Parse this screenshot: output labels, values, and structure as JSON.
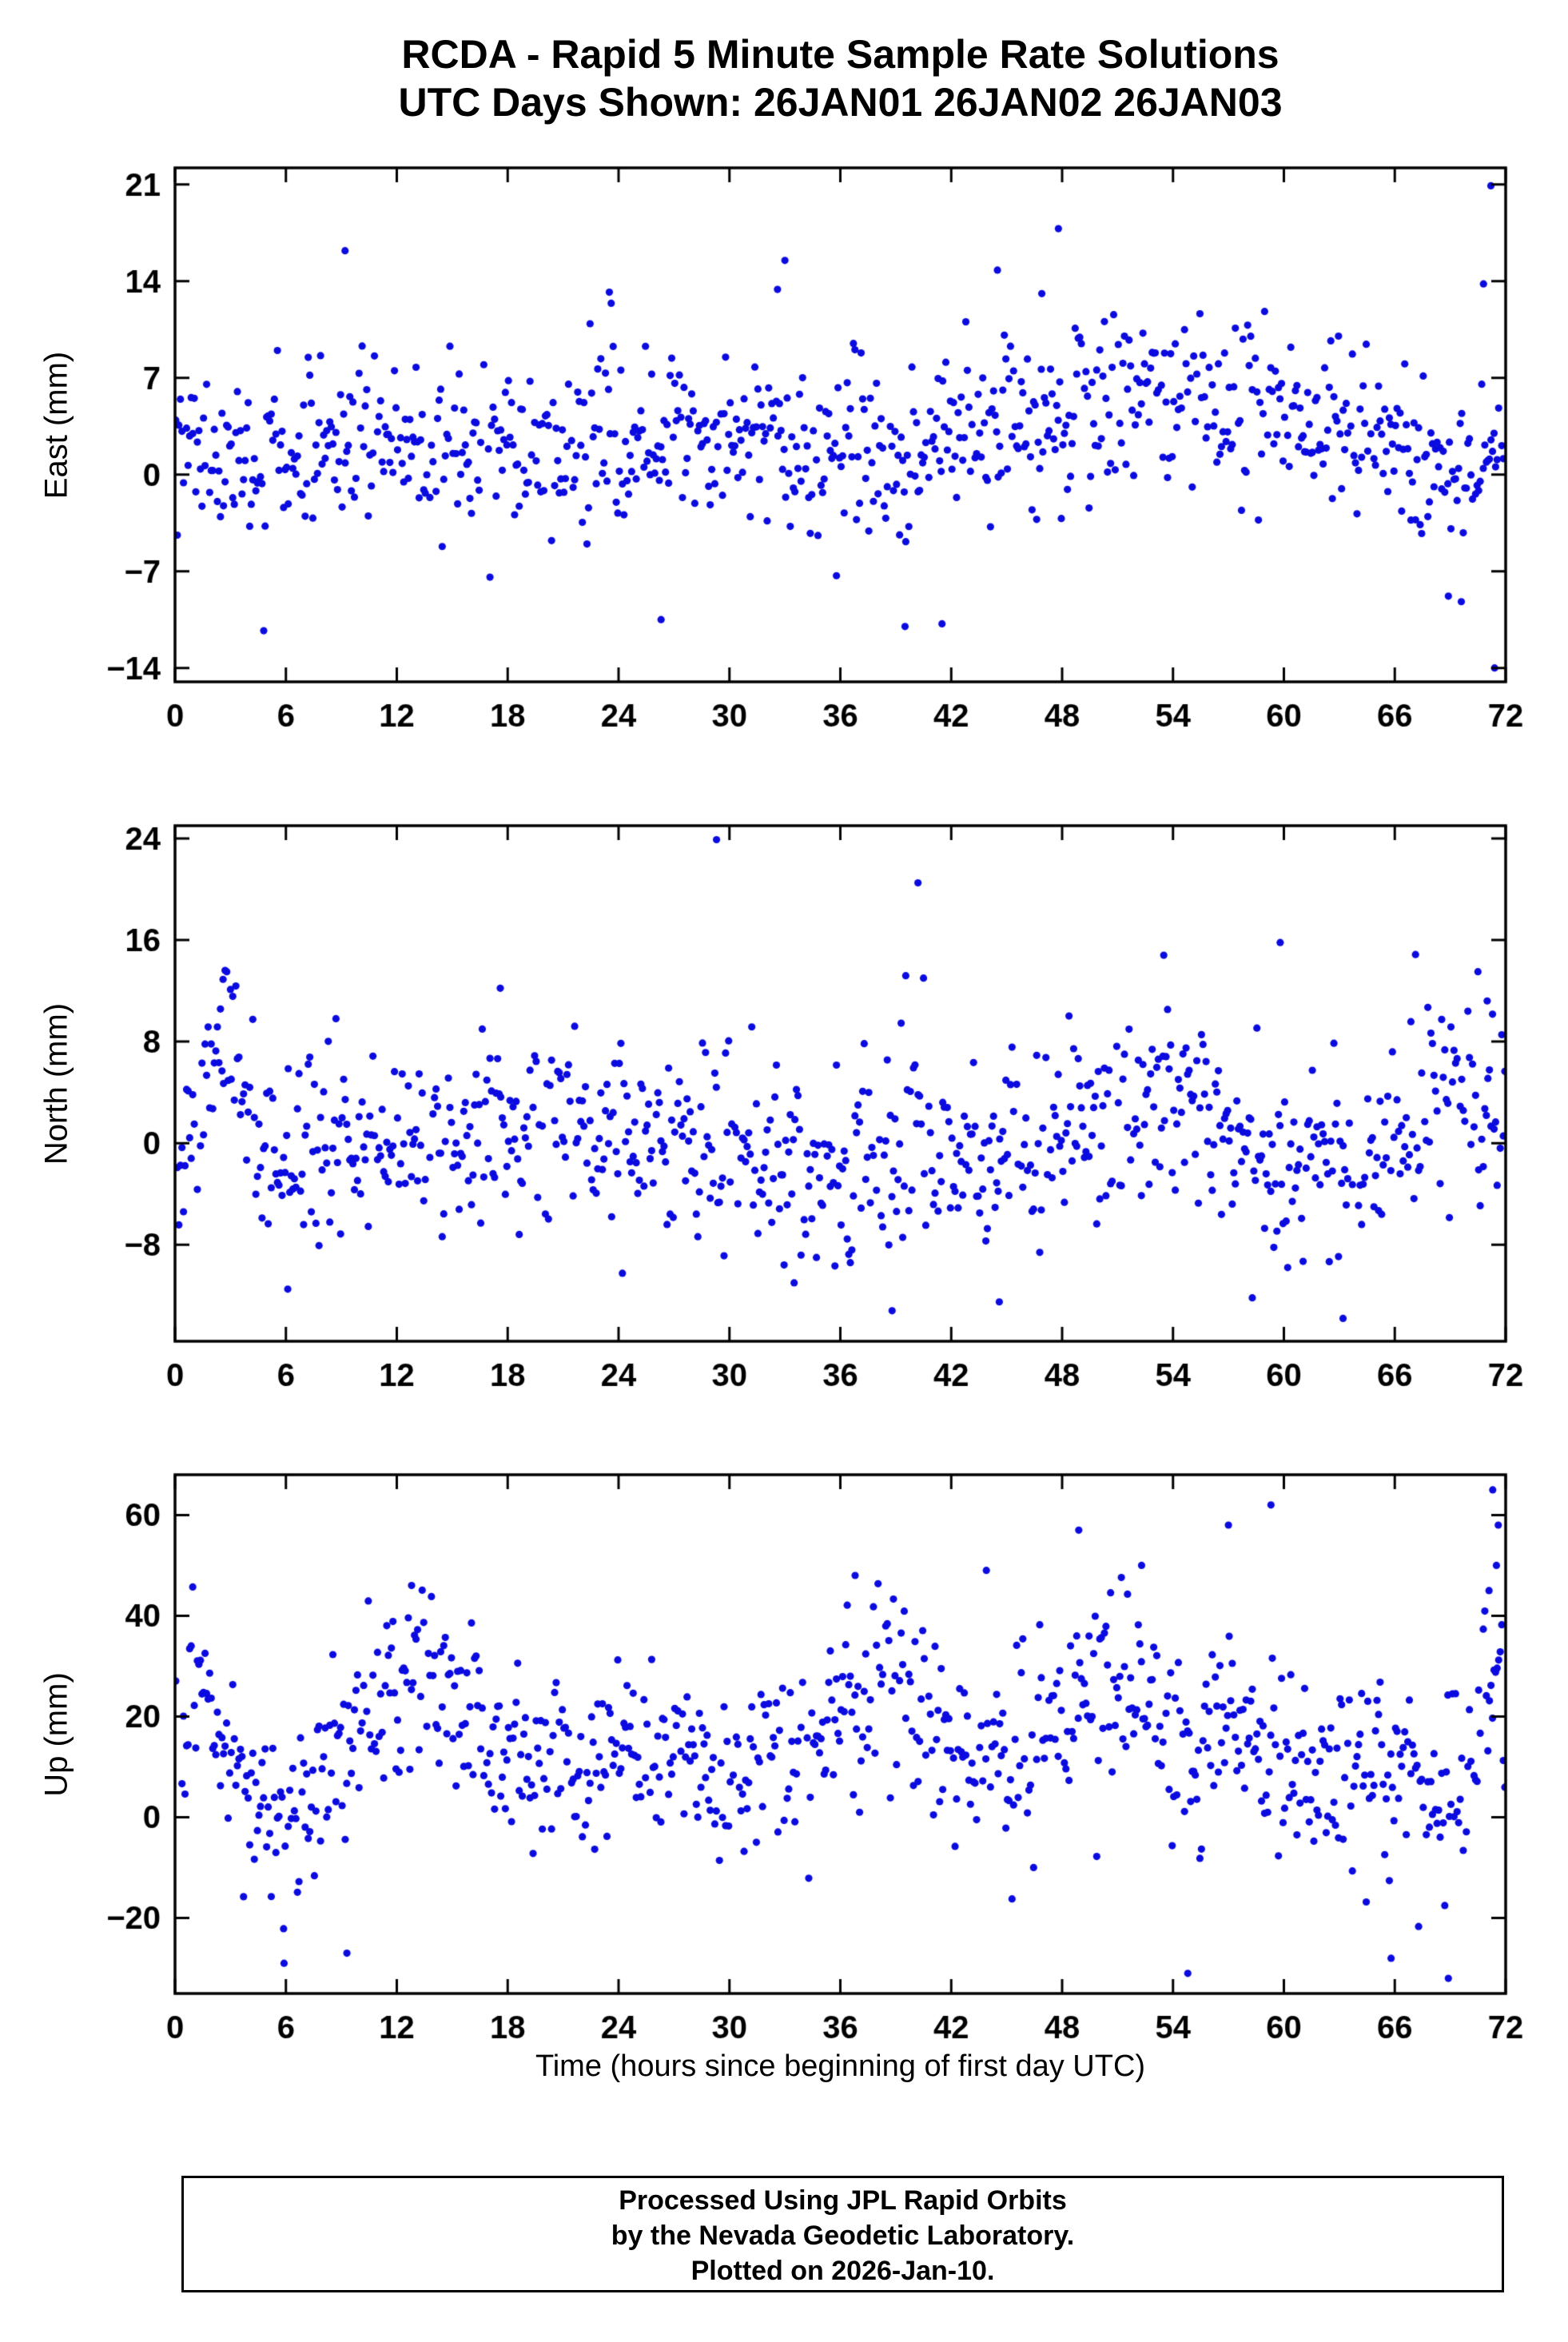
{
  "title": {
    "line1": "RCDA - Rapid 5 Minute Sample Rate Solutions",
    "line2": "UTC Days Shown:  26JAN01 26JAN02 26JAN03"
  },
  "point_color": "#0b0be0",
  "x_axis": {
    "label": "Time (hours since beginning of first day UTC)",
    "min": 0,
    "max": 72,
    "ticks": [
      0,
      6,
      12,
      18,
      24,
      30,
      36,
      42,
      48,
      54,
      60,
      66,
      72
    ],
    "tick_labels": [
      "0",
      "6",
      "12",
      "18",
      "24",
      "30",
      "36",
      "42",
      "48",
      "54",
      "60",
      "66",
      "72"
    ]
  },
  "chart_data": [
    {
      "panel": "east",
      "type": "scatter",
      "ylabel": "East (mm)",
      "units": "mm",
      "ylim": [
        -15,
        22.2
      ],
      "yticks": [
        -14,
        -7,
        0,
        7,
        14,
        21
      ],
      "ytick_labels": [
        "−14",
        "−7",
        "0",
        "7",
        "14",
        "21"
      ],
      "sample_interval_hours": 0.08333,
      "seed": 42,
      "sigma": 3.2,
      "mean_profile": [
        [
          0,
          1.5
        ],
        [
          6,
          2
        ],
        [
          12,
          2.5
        ],
        [
          18,
          2
        ],
        [
          24,
          2
        ],
        [
          30,
          2.5
        ],
        [
          36,
          2
        ],
        [
          40,
          1
        ],
        [
          44,
          3
        ],
        [
          48,
          4
        ],
        [
          52,
          5.5
        ],
        [
          56,
          5
        ],
        [
          60,
          4.5
        ],
        [
          63,
          3
        ],
        [
          66,
          1.5
        ],
        [
          69,
          0
        ],
        [
          72,
          0.5
        ]
      ],
      "outliers": [
        [
          4.8,
          -11.3
        ],
        [
          9.2,
          16.2
        ],
        [
          23.5,
          13.2
        ],
        [
          23.6,
          12.4
        ],
        [
          26.3,
          -10.5
        ],
        [
          33.0,
          15.5
        ],
        [
          32.6,
          13.4
        ],
        [
          39.5,
          -11.0
        ],
        [
          41.5,
          -10.8
        ],
        [
          44.5,
          14.8
        ],
        [
          47.8,
          17.8
        ],
        [
          46.9,
          13.1
        ],
        [
          70.8,
          13.8
        ],
        [
          71.2,
          20.9
        ],
        [
          71.4,
          -14.0
        ],
        [
          68.9,
          -8.8
        ],
        [
          69.6,
          -9.2
        ]
      ]
    },
    {
      "panel": "north",
      "type": "scatter",
      "ylabel": "North (mm)",
      "units": "mm",
      "ylim": [
        -15.6,
        25
      ],
      "yticks": [
        -8,
        0,
        8,
        16,
        24
      ],
      "ytick_labels": [
        "−8",
        "0",
        "8",
        "16",
        "24"
      ],
      "sample_interval_hours": 0.08333,
      "seed": 7,
      "sigma": 3.8,
      "mean_profile": [
        [
          0,
          -2
        ],
        [
          1.5,
          2
        ],
        [
          2.5,
          8
        ],
        [
          3.5,
          4
        ],
        [
          5,
          -1
        ],
        [
          8,
          0
        ],
        [
          12,
          0
        ],
        [
          16,
          1
        ],
        [
          20,
          1
        ],
        [
          24,
          1
        ],
        [
          28,
          0
        ],
        [
          32,
          -1
        ],
        [
          36,
          -2
        ],
        [
          40,
          0
        ],
        [
          44,
          -1
        ],
        [
          48,
          0
        ],
        [
          52,
          2
        ],
        [
          54,
          4
        ],
        [
          56,
          1
        ],
        [
          60,
          -1
        ],
        [
          63,
          -2
        ],
        [
          66,
          2
        ],
        [
          68,
          4
        ],
        [
          70,
          3
        ],
        [
          72,
          4
        ]
      ],
      "outliers": [
        [
          2.6,
          12.9
        ],
        [
          2.8,
          13.5
        ],
        [
          3.0,
          12.1
        ],
        [
          6.1,
          -11.5
        ],
        [
          17.6,
          12.2
        ],
        [
          29.3,
          23.9
        ],
        [
          33.5,
          -11.0
        ],
        [
          38.8,
          -13.2
        ],
        [
          40.2,
          20.5
        ],
        [
          40.5,
          13.0
        ],
        [
          44.6,
          -12.5
        ],
        [
          53.5,
          14.8
        ],
        [
          59.8,
          15.8
        ],
        [
          63.2,
          -13.8
        ],
        [
          70.5,
          13.5
        ],
        [
          71.0,
          11.2
        ]
      ]
    },
    {
      "panel": "up",
      "type": "scatter",
      "ylabel": "Up (mm)",
      "units": "mm",
      "ylim": [
        -35,
        68
      ],
      "yticks": [
        -20,
        0,
        20,
        40,
        60
      ],
      "ytick_labels": [
        "−20",
        "0",
        "20",
        "40",
        "60"
      ],
      "sample_interval_hours": 0.08333,
      "seed": 13,
      "sigma": 9,
      "mean_profile": [
        [
          0,
          15
        ],
        [
          1,
          25
        ],
        [
          2,
          18
        ],
        [
          3,
          8
        ],
        [
          4,
          2
        ],
        [
          5,
          -3
        ],
        [
          6,
          -5
        ],
        [
          8,
          5
        ],
        [
          9,
          15
        ],
        [
          10,
          22
        ],
        [
          11,
          24
        ],
        [
          12,
          25
        ],
        [
          13,
          30
        ],
        [
          14,
          26
        ],
        [
          15,
          24
        ],
        [
          16,
          20
        ],
        [
          17,
          12
        ],
        [
          18,
          15
        ],
        [
          19,
          10
        ],
        [
          20,
          12
        ],
        [
          22,
          10
        ],
        [
          24,
          15
        ],
        [
          26,
          15
        ],
        [
          28,
          8
        ],
        [
          30,
          8
        ],
        [
          32,
          12
        ],
        [
          34,
          15
        ],
        [
          36,
          18
        ],
        [
          37,
          22
        ],
        [
          38,
          25
        ],
        [
          39,
          28
        ],
        [
          40,
          25
        ],
        [
          41,
          20
        ],
        [
          42,
          12
        ],
        [
          43,
          8
        ],
        [
          44,
          10
        ],
        [
          46,
          12
        ],
        [
          48,
          18
        ],
        [
          49,
          25
        ],
        [
          50,
          28
        ],
        [
          51,
          28
        ],
        [
          52,
          25
        ],
        [
          53,
          22
        ],
        [
          54,
          18
        ],
        [
          55,
          10
        ],
        [
          56,
          15
        ],
        [
          57,
          20
        ],
        [
          58,
          18
        ],
        [
          59,
          15
        ],
        [
          60,
          12
        ],
        [
          61,
          8
        ],
        [
          62,
          8
        ],
        [
          63,
          10
        ],
        [
          64,
          8
        ],
        [
          65,
          10
        ],
        [
          66,
          8
        ],
        [
          67,
          5
        ],
        [
          68,
          5
        ],
        [
          69,
          2
        ],
        [
          70,
          8
        ],
        [
          71,
          30
        ],
        [
          72,
          20
        ]
      ],
      "outliers": [
        [
          5.9,
          -29
        ],
        [
          9.3,
          -27
        ],
        [
          12.8,
          46
        ],
        [
          36.8,
          48
        ],
        [
          43.9,
          49
        ],
        [
          48.9,
          57
        ],
        [
          52.3,
          50
        ],
        [
          54.8,
          -31
        ],
        [
          57.0,
          58
        ],
        [
          59.3,
          62
        ],
        [
          65.8,
          -28
        ],
        [
          68.9,
          -32
        ],
        [
          71.1,
          45
        ],
        [
          71.3,
          65
        ],
        [
          71.5,
          50
        ],
        [
          71.6,
          58
        ]
      ]
    }
  ],
  "footer": {
    "line1": "Processed Using JPL Rapid Orbits",
    "line2": "by the Nevada Geodetic Laboratory.",
    "line3": "Plotted on 2026-Jan-10."
  }
}
